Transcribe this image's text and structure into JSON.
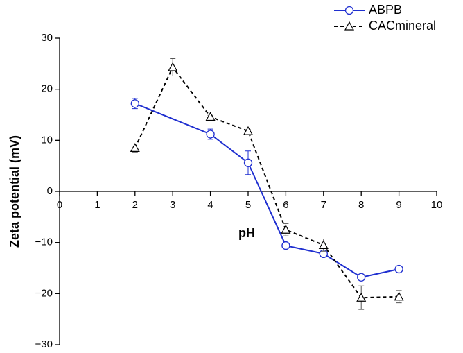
{
  "chart_data": {
    "type": "line",
    "xlabel": "pH",
    "ylabel": "Zeta potential (mV)",
    "xlim": [
      0,
      10
    ],
    "xticks": [
      0,
      1,
      2,
      3,
      4,
      5,
      6,
      7,
      8,
      9,
      10
    ],
    "ylim": [
      -30,
      30
    ],
    "yticks": [
      {
        "value": -30,
        "label": "−30"
      },
      {
        "value": -20,
        "label": "−20"
      },
      {
        "value": -10,
        "label": "−10"
      },
      0,
      10,
      20,
      30
    ],
    "legend": "top-right",
    "series": [
      {
        "name": "ABPB",
        "color": "#1f2fd0",
        "marker": "circle",
        "dash": false,
        "x": [
          2,
          4,
          5,
          6,
          7,
          8,
          9
        ],
        "values": [
          17.2,
          11.2,
          5.6,
          -10.6,
          -12.2,
          -16.8,
          -15.2
        ],
        "errors": [
          1,
          1,
          2.3,
          0.5,
          0.5,
          0.5,
          0.3
        ]
      },
      {
        "name": "CACmineral",
        "color": "#000000",
        "marker": "triangle",
        "dash": true,
        "x": [
          2,
          3,
          4,
          5,
          6,
          7,
          8,
          9
        ],
        "values": [
          8.5,
          24.3,
          14.6,
          11.8,
          -7.5,
          -10.5,
          -20.8,
          -20.6
        ],
        "errors": [
          0.8,
          1.7,
          0.3,
          0.3,
          1.2,
          1.2,
          2.3,
          1.2
        ]
      }
    ]
  }
}
